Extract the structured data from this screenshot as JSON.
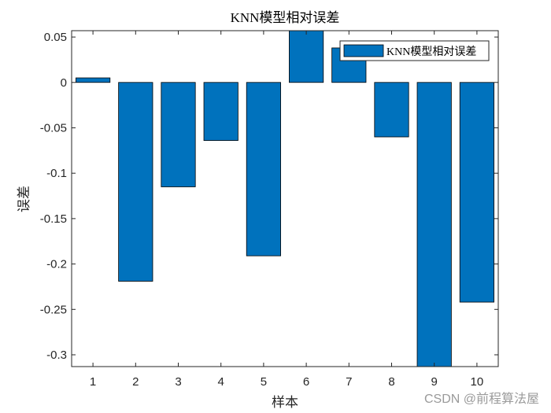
{
  "watermark": "CSDN @前程算法屋",
  "chart_data": {
    "type": "bar",
    "title": "KNN模型相对误差",
    "xlabel": "样本",
    "ylabel": "误差",
    "categories": [
      "1",
      "2",
      "3",
      "4",
      "5",
      "6",
      "7",
      "8",
      "9",
      "10"
    ],
    "series": [
      {
        "name": "KNN模型相对误差",
        "values": [
          0.005,
          -0.219,
          -0.115,
          -0.064,
          -0.191,
          0.057,
          0.038,
          -0.06,
          -0.313,
          -0.242
        ]
      }
    ],
    "ylim": [
      -0.313,
      0.057
    ],
    "yticks": [
      0.05,
      0,
      -0.05,
      -0.1,
      -0.15,
      -0.2,
      -0.25,
      -0.3
    ],
    "ytick_labels": [
      "0.05",
      "0",
      "-0.05",
      "-0.1",
      "-0.15",
      "-0.2",
      "-0.25",
      "-0.3"
    ],
    "bar_color": "#0072bd",
    "legend_position": "top-right",
    "grid": false
  }
}
